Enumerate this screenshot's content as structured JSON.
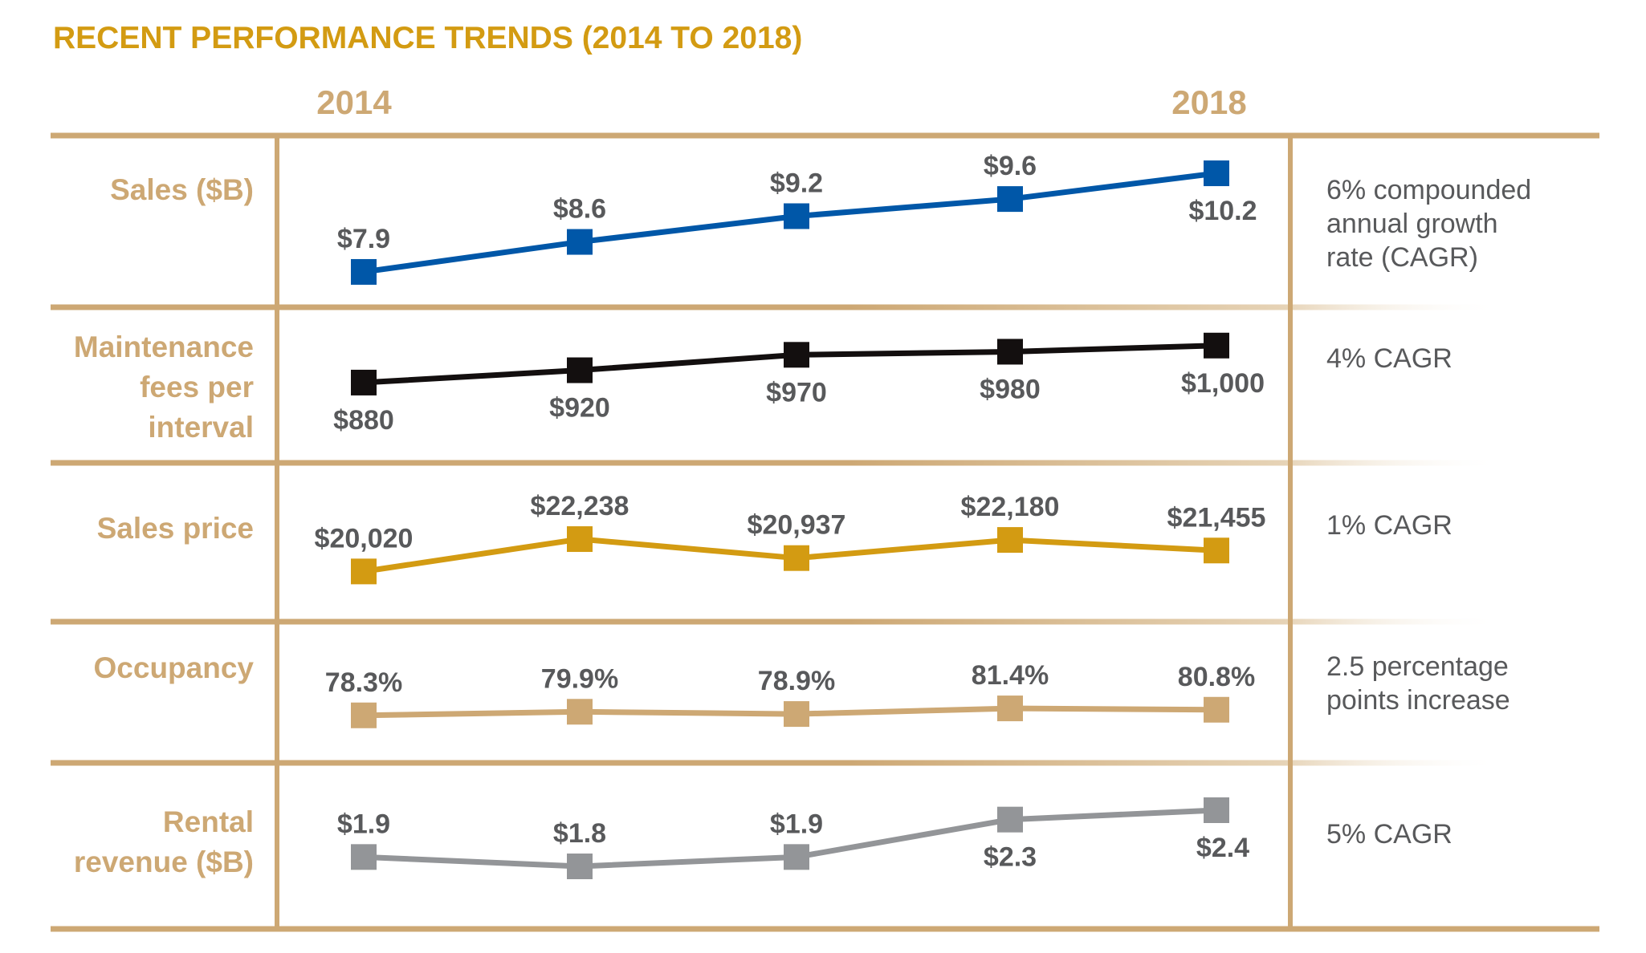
{
  "chart_data": {
    "type": "line",
    "title": "RECENT PERFORMANCE TRENDS (2014 TO 2018)",
    "x": [
      2014,
      2015,
      2016,
      2017,
      2018
    ],
    "x_tick_labels_shown": [
      "2014",
      "2018"
    ],
    "grid": false,
    "legend": "none",
    "rows": [
      {
        "name": "Sales ($B)",
        "color": "#0057A8",
        "values": [
          7.9,
          8.6,
          9.2,
          9.6,
          10.2
        ],
        "labels": [
          "$7.9",
          "$8.6",
          "$9.2",
          "$9.6",
          "$10.2"
        ],
        "label_positions": [
          "above",
          "above",
          "above",
          "above",
          "below"
        ],
        "ylim": [
          7.6,
          10.5
        ],
        "note": "6% compounded annual growth rate (CAGR)",
        "note_lines": [
          "6% compounded",
          "annual growth",
          "rate (CAGR)"
        ]
      },
      {
        "name": "Maintenance fees per interval",
        "color": "#130F0F",
        "values": [
          880,
          920,
          970,
          980,
          1000
        ],
        "labels": [
          "$880",
          "$920",
          "$970",
          "$980",
          "$1,000"
        ],
        "label_positions": [
          "below",
          "below",
          "below",
          "below",
          "below"
        ],
        "ylim": [
          820,
          1080
        ],
        "note": "4% CAGR",
        "note_lines": [
          "4% CAGR"
        ],
        "label_lines": [
          "Maintenance",
          "fees per",
          "interval"
        ]
      },
      {
        "name": "Sales price",
        "color": "#D39B12",
        "values": [
          20020,
          22238,
          20937,
          22180,
          21455
        ],
        "labels": [
          "$20,020",
          "$22,238",
          "$20,937",
          "$22,180",
          "$21,455"
        ],
        "label_positions": [
          "above",
          "above",
          "above",
          "above",
          "above"
        ],
        "ylim": [
          18500,
          24000
        ],
        "note": "1% CAGR",
        "note_lines": [
          "1% CAGR"
        ]
      },
      {
        "name": "Occupancy",
        "color": "#CDA874",
        "values": [
          78.3,
          79.9,
          78.9,
          81.4,
          80.8
        ],
        "labels": [
          "78.3%",
          "79.9%",
          "78.9%",
          "81.4%",
          "80.8%"
        ],
        "label_positions": [
          "above",
          "above",
          "above",
          "above",
          "above"
        ],
        "ylim": [
          70,
          95
        ],
        "note": "2.5 percentage points increase",
        "note_lines": [
          "2.5 percentage",
          "points increase"
        ]
      },
      {
        "name": "Rental revenue ($B)",
        "color": "#939598",
        "values": [
          1.9,
          1.8,
          1.9,
          2.3,
          2.4
        ],
        "labels": [
          "$1.9",
          "$1.8",
          "$1.9",
          "$2.3",
          "$2.4"
        ],
        "label_positions": [
          "above",
          "above",
          "above",
          "below",
          "below"
        ],
        "ylim": [
          1.5,
          2.7
        ],
        "note": "5% CAGR",
        "note_lines": [
          "5% CAGR"
        ],
        "label_lines": [
          "Rental",
          "revenue ($B)"
        ]
      }
    ]
  },
  "header": {
    "title": "RECENT PERFORMANCE TRENDS (2014 TO 2018)",
    "year_start": "2014",
    "year_end": "2018"
  },
  "colors": {
    "title": "#D39B12",
    "rule": "#CDA874",
    "label_text": "#58595B"
  }
}
